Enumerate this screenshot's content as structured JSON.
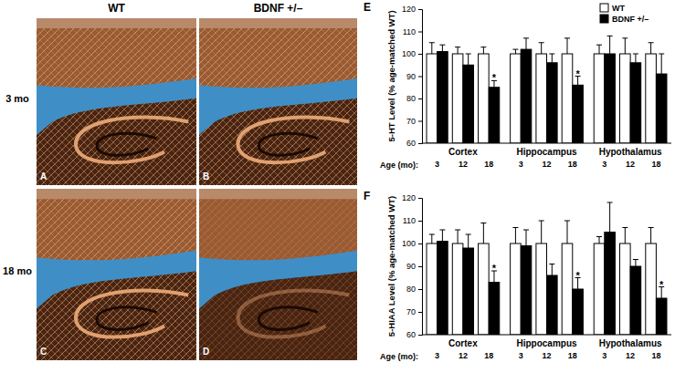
{
  "figure": {
    "column_labels": [
      "WT",
      "BDNF +/–"
    ],
    "row_labels": [
      "3 mo",
      "18 mo"
    ],
    "panel_labels": [
      [
        "A",
        "B"
      ],
      [
        "C",
        "D"
      ]
    ]
  },
  "chart_data": [
    {
      "type": "bar",
      "panel_label": "E",
      "y_label": "5-HT Level (% age-matched WT)",
      "x_label": "Age (mo):",
      "group_labels": [
        "Cortex",
        "Hippocampus",
        "Hypothalamus"
      ],
      "categories": [
        "3",
        "12",
        "18",
        "3",
        "12",
        "18",
        "3",
        "12",
        "18"
      ],
      "series": [
        {
          "name": "WT",
          "color": "#ffffff",
          "values": [
            100,
            100,
            100,
            100,
            100,
            100,
            100,
            100,
            100
          ],
          "errors": [
            5,
            3,
            3,
            2,
            5,
            7,
            4,
            7,
            5
          ]
        },
        {
          "name": "BDNF +/–",
          "color": "#000000",
          "values": [
            101,
            95,
            85,
            102,
            96,
            86,
            100,
            96,
            91
          ],
          "errors": [
            3,
            5,
            3,
            5,
            4,
            4,
            8,
            4,
            9
          ],
          "annotations": [
            null,
            null,
            "*",
            null,
            null,
            "*",
            null,
            null,
            null
          ]
        }
      ],
      "ylim": [
        60,
        120
      ],
      "yticks": [
        60,
        70,
        80,
        90,
        100,
        110,
        120
      ],
      "legend": "top-right"
    },
    {
      "type": "bar",
      "panel_label": "F",
      "y_label": "5-HIAA Level (% age-matched WT)",
      "x_label": "Age (mo):",
      "group_labels": [
        "Cortex",
        "Hippocampus",
        "Hypothalamus"
      ],
      "categories": [
        "3",
        "12",
        "18",
        "3",
        "12",
        "18",
        "3",
        "12",
        "18"
      ],
      "series": [
        {
          "name": "WT",
          "color": "#ffffff",
          "values": [
            100,
            100,
            100,
            100,
            100,
            100,
            100,
            100,
            100
          ],
          "errors": [
            4,
            6,
            9,
            7,
            10,
            10,
            3,
            7,
            7
          ]
        },
        {
          "name": "BDNF +/–",
          "color": "#000000",
          "values": [
            101,
            98,
            83,
            99,
            86,
            80,
            105,
            90,
            76
          ],
          "errors": [
            5,
            6,
            5,
            7,
            5,
            5,
            13,
            3,
            5
          ],
          "annotations": [
            null,
            null,
            "*",
            null,
            null,
            "*",
            null,
            null,
            "*"
          ]
        }
      ],
      "ylim": [
        60,
        120
      ],
      "yticks": [
        60,
        70,
        80,
        90,
        100,
        110,
        120
      ]
    }
  ]
}
